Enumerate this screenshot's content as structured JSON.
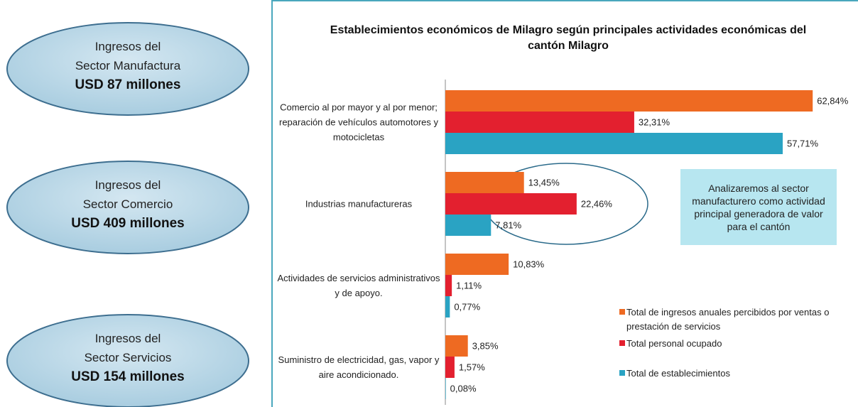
{
  "side_panels": [
    {
      "line1": "Ingresos del",
      "line2": "Sector Manufactura",
      "amount": "USD 87 millones"
    },
    {
      "line1": "Ingresos del",
      "line2": "Sector Comercio",
      "amount": "USD 409 millones"
    },
    {
      "line1": "Ingresos del",
      "line2": "Sector Servicios",
      "amount": "USD  154 millones"
    }
  ],
  "chart_data": {
    "type": "hbar",
    "title": "Establecimientos económicos de Milagro según principales actividades económicas del cantón Milagro",
    "categories": [
      "Comercio al por mayor y al por menor; reparación de vehículos automotores y motocicletas",
      "Industrias manufactureras",
      "Actividades de servicios administrativos y de apoyo.",
      "Suministro de electricidad, gas, vapor y aire acondicionado."
    ],
    "series": [
      {
        "name": "Total de ingresos anuales percibidos por ventas o prestación de servicios",
        "color": "#ee6a22",
        "values": [
          62.84,
          13.45,
          10.83,
          3.85
        ],
        "value_labels": [
          "62,84%",
          "13,45%",
          "10,83%",
          "3,85%"
        ]
      },
      {
        "name": "Total personal ocupado",
        "color": "#e3202f",
        "values": [
          32.31,
          22.46,
          1.11,
          1.57
        ],
        "value_labels": [
          "32,31%",
          "22,46%",
          "1,11%",
          "1,57%"
        ]
      },
      {
        "name": "Total de establecimientos",
        "color": "#2aa3c3",
        "values": [
          57.71,
          7.81,
          0.77,
          0.08
        ],
        "value_labels": [
          "57,71%",
          "7,81%",
          "0,77%",
          "0,08%"
        ]
      }
    ],
    "xlim": [
      0,
      65
    ],
    "legend": "lower right",
    "annotation": "Analizaremos al sector manufacturero como  actividad principal generadora de valor para el cantón"
  }
}
